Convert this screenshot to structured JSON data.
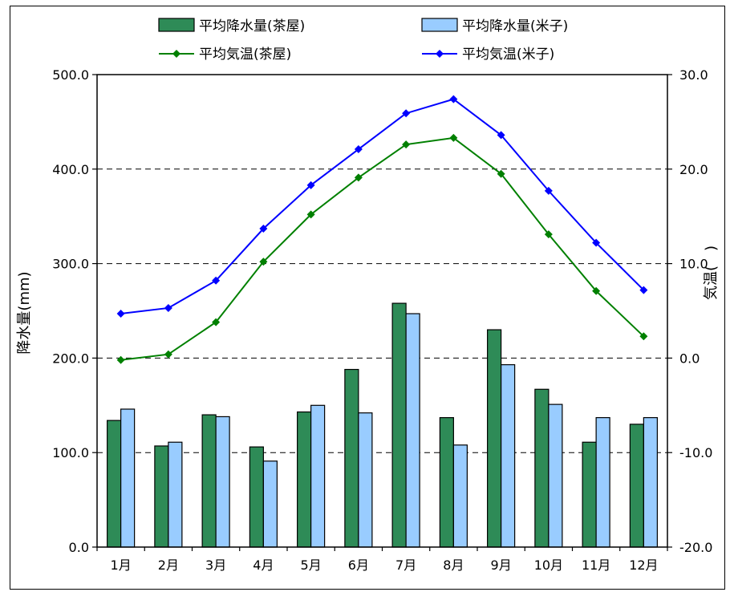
{
  "chart_data": {
    "type": "bar+line",
    "categories": [
      "1月",
      "2月",
      "3月",
      "4月",
      "5月",
      "6月",
      "7月",
      "8月",
      "9月",
      "10月",
      "11月",
      "12月"
    ],
    "bar_series": [
      {
        "name": "平均降水量(茶屋)",
        "color": "#2e8b57",
        "values": [
          134,
          107,
          140,
          106,
          143,
          188,
          258,
          137,
          230,
          167,
          111,
          130
        ]
      },
      {
        "name": "平均降水量(米子)",
        "color": "#99ccff",
        "values": [
          146,
          111,
          138,
          91,
          150,
          142,
          247,
          108,
          193,
          151,
          137,
          137
        ]
      }
    ],
    "line_series": [
      {
        "name": "平均気温(茶屋)",
        "color": "#008000",
        "values": [
          -0.2,
          0.4,
          3.8,
          10.2,
          15.2,
          19.1,
          22.6,
          23.3,
          19.5,
          13.1,
          7.1,
          2.3
        ]
      },
      {
        "name": "平均気温(米子)",
        "color": "#0000ff",
        "values": [
          4.7,
          5.3,
          8.2,
          13.7,
          18.3,
          22.1,
          25.9,
          27.4,
          23.6,
          17.7,
          12.2,
          7.2
        ]
      }
    ],
    "ylabel_left": "降水量(mm)",
    "ylabel_right": "気温(　)",
    "ylim_left": [
      0,
      500
    ],
    "ylim_right": [
      -20,
      30
    ],
    "left_ticks": [
      "0.0",
      "100.0",
      "200.0",
      "300.0",
      "400.0",
      "500.0"
    ],
    "right_ticks": [
      "-20.0",
      "-10.0",
      "0.0",
      "10.0",
      "20.0",
      "30.0"
    ],
    "grid": "dashed-horizontal",
    "legend_position": "top"
  }
}
